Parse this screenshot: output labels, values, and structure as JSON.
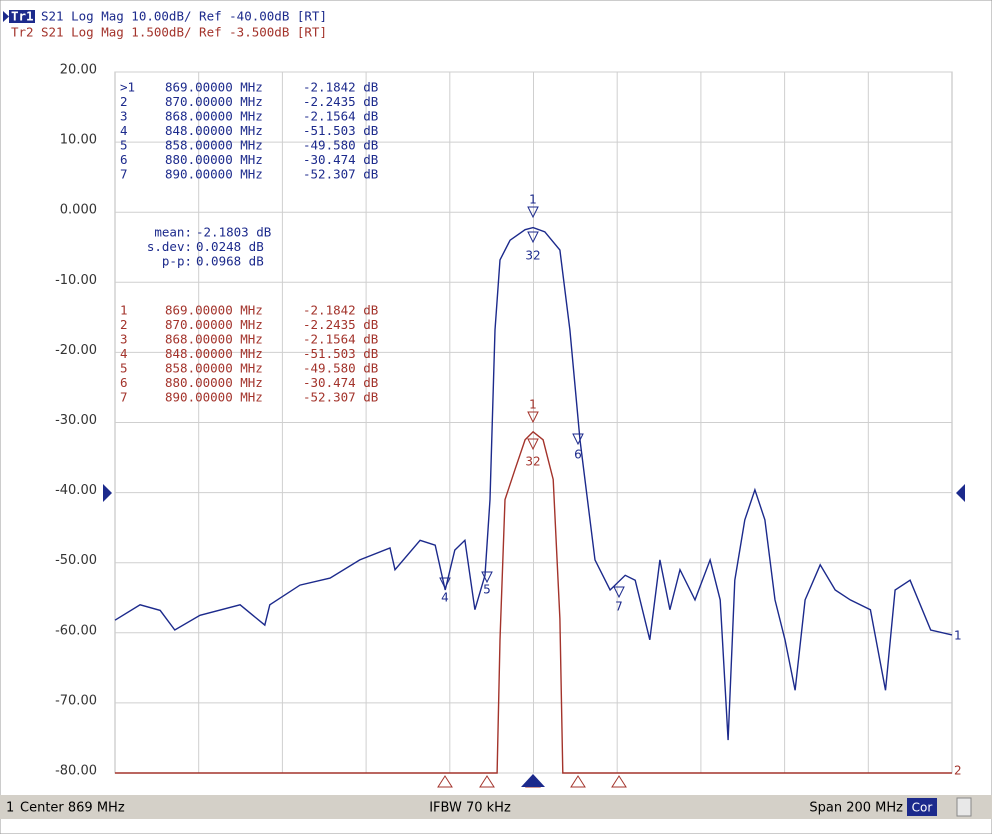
{
  "traces": [
    {
      "name": "Tr1",
      "setting": "S21 Log Mag 10.00dB/ Ref -40.00dB [RT]"
    },
    {
      "name": "Tr2",
      "setting": "S21 Log Mag 1.500dB/ Ref -3.500dB [RT]"
    }
  ],
  "chart_data": {
    "type": "line",
    "xlim": [
      769,
      969
    ],
    "ylim": [
      -80,
      20
    ],
    "y2lim": [
      -9.5,
      5.5
    ],
    "yticks": [
      {
        "value": 20,
        "label": "20.00"
      },
      {
        "value": 10,
        "label": "10.00"
      },
      {
        "value": 0,
        "label": "0.000"
      },
      {
        "value": -10,
        "label": "-10.00"
      },
      {
        "value": -20,
        "label": "-20.00"
      },
      {
        "value": -30,
        "label": "-30.00"
      },
      {
        "value": -40,
        "label": "-40.00"
      },
      {
        "value": -50,
        "label": "-50.00"
      },
      {
        "value": -60,
        "label": "-60.00"
      },
      {
        "value": -70,
        "label": "-70.00"
      },
      {
        "value": -80,
        "label": "-80.00"
      }
    ],
    "grid": true,
    "series": [
      {
        "name": "Tr1",
        "color": "#1c2a8c",
        "end_label": "1",
        "marker_tags": [
          "1",
          "32",
          "4",
          "5",
          "6",
          "7"
        ],
        "x": [
          769,
          775,
          779.8,
          783.3,
          789.3,
          798.9,
          804.8,
          806,
          813.2,
          820.4,
          827.5,
          834.7,
          835.9,
          841.9,
          845.5,
          847.9,
          850.2,
          852.6,
          855,
          857.4,
          858.6,
          859.8,
          861,
          863.4,
          867,
          868.9,
          871.7,
          875.3,
          877.7,
          880.1,
          883.7,
          887.3,
          890.9,
          893.3,
          896.8,
          899.2,
          901.6,
          904,
          907.6,
          911.2,
          913.6,
          915.5,
          917.1,
          919.5,
          921.9,
          924.3,
          926.7,
          929.1,
          931.5,
          933.9,
          937.5,
          941.1,
          944.7,
          949.5,
          953.1,
          955.4,
          959,
          963.9,
          969
        ],
        "values": [
          -58.2,
          -56,
          -56.8,
          -59.6,
          -57.5,
          -56,
          -58.9,
          -56,
          -53.2,
          -52.2,
          -49.6,
          -47.9,
          -51,
          -46.8,
          -47.5,
          -53.9,
          -48.2,
          -46.8,
          -56.7,
          -51.8,
          -41,
          -16.8,
          -6.8,
          -4.0,
          -2.5,
          -2.2,
          -2.8,
          -5.4,
          -16.8,
          -32.5,
          -49.6,
          -53.9,
          -51.8,
          -52.5,
          -61,
          -49.6,
          -56.7,
          -51,
          -55.3,
          -49.6,
          -55.3,
          -75.3,
          -52.5,
          -43.9,
          -39.6,
          -43.9,
          -55.3,
          -61,
          -68.2,
          -55.3,
          -50.3,
          -53.9,
          -55.3,
          -56.7,
          -68.2,
          -53.9,
          -52.5,
          -59.6,
          -60.3
        ]
      },
      {
        "name": "Tr2",
        "color": "#a3332b",
        "axis": "y2",
        "end_label": "2",
        "marker_tags": [
          "1",
          "32"
        ],
        "x": [
          769,
          860.3,
          861,
          862.2,
          864.6,
          867,
          868.9,
          871.3,
          873.7,
          875.3,
          876,
          969
        ],
        "values": [
          -9.5,
          -9.5,
          -6.65,
          -3.65,
          -3.0,
          -2.37,
          -2.2,
          -2.37,
          -3.22,
          -6.2,
          -9.5,
          -9.5
        ]
      }
    ]
  },
  "marker_tables": [
    {
      "rows": [
        [
          ">1",
          "869.00000 MHz",
          "-2.1842 dB"
        ],
        [
          "2",
          "870.00000 MHz",
          "-2.2435 dB"
        ],
        [
          "3",
          "868.00000 MHz",
          "-2.1564 dB"
        ],
        [
          "4",
          "848.00000 MHz",
          "-51.503 dB"
        ],
        [
          "5",
          "858.00000 MHz",
          "-49.580 dB"
        ],
        [
          "6",
          "880.00000 MHz",
          "-30.474 dB"
        ],
        [
          "7",
          "890.00000 MHz",
          "-52.307 dB"
        ]
      ],
      "stats": [
        [
          "mean:",
          "-2.1803 dB"
        ],
        [
          "s.dev:",
          "0.0248 dB"
        ],
        [
          "p-p:",
          "0.0968 dB"
        ]
      ]
    },
    {
      "rows": [
        [
          "1",
          "869.00000 MHz",
          "-2.1842 dB"
        ],
        [
          "2",
          "870.00000 MHz",
          "-2.2435 dB"
        ],
        [
          "3",
          "868.00000 MHz",
          "-2.1564 dB"
        ],
        [
          "4",
          "848.00000 MHz",
          "-51.503 dB"
        ],
        [
          "5",
          "858.00000 MHz",
          "-49.580 dB"
        ],
        [
          "6",
          "880.00000 MHz",
          "-30.474 dB"
        ],
        [
          "7",
          "890.00000 MHz",
          "-52.307 dB"
        ]
      ]
    }
  ],
  "status_bar": {
    "channel": "1",
    "center": "Center 869 MHz",
    "ifbw": "IFBW 70 kHz",
    "span": "Span 200 MHz",
    "correction": "Cor"
  }
}
